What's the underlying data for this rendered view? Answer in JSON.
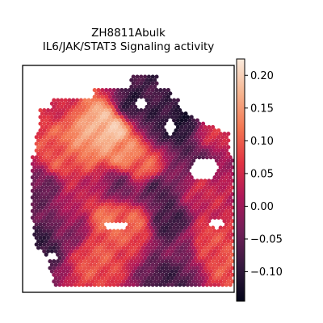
{
  "chart_data": {
    "type": "heatmap",
    "subtype": "spatial-hexbin",
    "title": "ZH8811Abulk",
    "subtitle": "IL6/JAK/STAT3 Signaling activity",
    "xlabel": "",
    "ylabel": "",
    "axes_ticks_visible": false,
    "grid": false,
    "colorbar": {
      "label": "",
      "colormap": "rocket",
      "range": [
        -0.145,
        0.225
      ],
      "ticks": [
        -0.1,
        -0.05,
        0.0,
        0.05,
        0.1,
        0.15,
        0.2
      ],
      "tick_labels": [
        "−0.10",
        "−0.05",
        "0.00",
        "0.05",
        "0.10",
        "0.15",
        "0.20"
      ]
    },
    "colormap_stops": [
      "#03051a",
      "#35193e",
      "#701f57",
      "#ad1759",
      "#e13342",
      "#f37651",
      "#f6b48f",
      "#faebdd"
    ],
    "value_fields": [
      {
        "x": 0.38,
        "y": 0.25,
        "v": 0.19
      },
      {
        "x": 0.33,
        "y": 0.21,
        "v": 0.17
      },
      {
        "x": 0.26,
        "y": 0.29,
        "v": 0.15
      },
      {
        "x": 0.44,
        "y": 0.36,
        "v": 0.14
      },
      {
        "x": 0.53,
        "y": 0.42,
        "v": 0.1
      },
      {
        "x": 0.16,
        "y": 0.38,
        "v": 0.09
      },
      {
        "x": 0.36,
        "y": 0.68,
        "v": 0.11
      },
      {
        "x": 0.48,
        "y": 0.7,
        "v": 0.1
      },
      {
        "x": 0.3,
        "y": 0.86,
        "v": 0.09
      },
      {
        "x": 0.82,
        "y": 0.78,
        "v": 0.08
      },
      {
        "x": 0.94,
        "y": 0.88,
        "v": 0.09
      },
      {
        "x": 0.14,
        "y": 0.12,
        "v": 0.05
      },
      {
        "x": 0.48,
        "y": 0.13,
        "v": -0.1
      },
      {
        "x": 0.55,
        "y": 0.05,
        "v": -0.08
      },
      {
        "x": 0.62,
        "y": 0.22,
        "v": -0.09
      },
      {
        "x": 0.7,
        "y": 0.23,
        "v": -0.12
      },
      {
        "x": 0.78,
        "y": 0.38,
        "v": -0.06
      },
      {
        "x": 0.6,
        "y": 0.55,
        "v": -0.07
      },
      {
        "x": 0.66,
        "y": 0.7,
        "v": -0.09
      },
      {
        "x": 0.72,
        "y": 0.8,
        "v": -0.03
      },
      {
        "x": 0.42,
        "y": 0.52,
        "v": -0.04
      },
      {
        "x": 0.06,
        "y": 0.55,
        "v": -0.05
      },
      {
        "x": 0.06,
        "y": 0.8,
        "v": -0.09
      },
      {
        "x": 0.2,
        "y": 0.74,
        "v": -0.02
      },
      {
        "x": 0.66,
        "y": 0.96,
        "v": -0.08
      },
      {
        "x": 0.22,
        "y": 0.56,
        "v": 0.03
      },
      {
        "x": 0.82,
        "y": 0.55,
        "v": 0.04
      },
      {
        "x": 0.86,
        "y": 0.28,
        "v": 0.05
      }
    ]
  }
}
